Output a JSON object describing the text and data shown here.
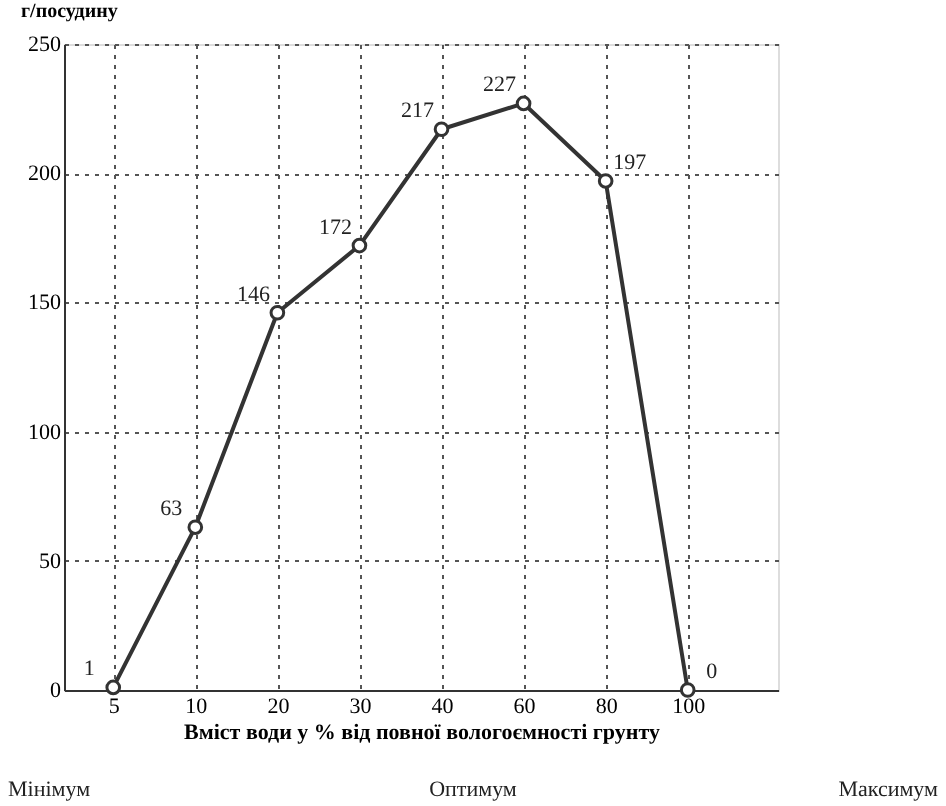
{
  "chart_data": {
    "type": "line",
    "ylabel": "г/посудину",
    "xlabel": "Вміст води у % від повної вологоємності грунту",
    "categories": [
      "5",
      "10",
      "20",
      "30",
      "40",
      "60",
      "80",
      "100"
    ],
    "series": [
      {
        "color": "#333333",
        "values": [
          1,
          63,
          146,
          172,
          217,
          227,
          197,
          0
        ]
      }
    ],
    "ylim": [
      0,
      250
    ],
    "yticks": [
      0,
      50,
      100,
      150,
      200,
      250
    ],
    "grid": true,
    "marker": "circle",
    "line_style": "solid",
    "data_labels": true,
    "annotations": [
      "Мінімум",
      "Оптимум",
      "Максимум"
    ]
  }
}
